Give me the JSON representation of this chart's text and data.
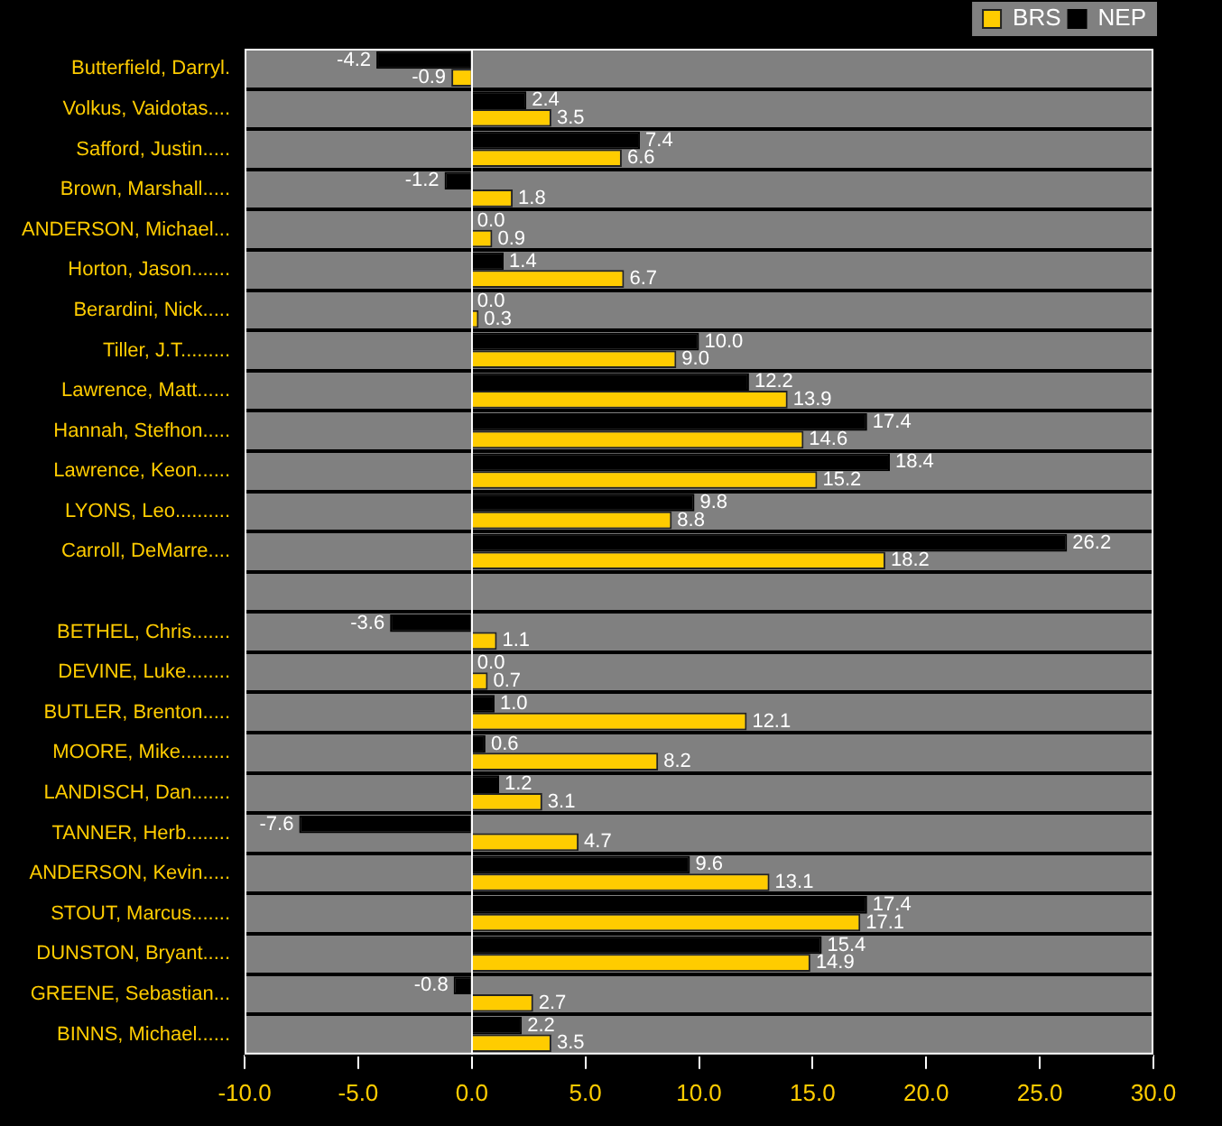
{
  "chart_data": {
    "type": "bar",
    "orientation": "horizontal",
    "categories": [
      "Butterfield, Darryl.",
      "Volkus, Vaidotas....",
      "Safford, Justin.....",
      "Brown, Marshall.....",
      "ANDERSON, Michael...",
      "Horton, Jason.......",
      "Berardini, Nick.....",
      "Tiller, J.T.........",
      "Lawrence, Matt......",
      "Hannah, Stefhon.....",
      "Lawrence, Keon......",
      "LYONS, Leo..........",
      "Carroll, DeMarre....",
      null,
      "BETHEL, Chris.......",
      "DEVINE, Luke........",
      "BUTLER, Brenton.....",
      "MOORE, Mike.........",
      "LANDISCH, Dan.......",
      "TANNER, Herb........",
      "ANDERSON, Kevin.....",
      "STOUT, Marcus.......",
      "DUNSTON, Bryant.....",
      "GREENE, Sebastian...",
      "BINNS, Michael......"
    ],
    "series": [
      {
        "name": "BRS",
        "color": "#ffcc00",
        "values": [
          -0.9,
          3.5,
          6.6,
          1.8,
          0.9,
          6.7,
          0.3,
          9.0,
          13.9,
          14.6,
          15.2,
          8.8,
          18.2,
          null,
          1.1,
          0.7,
          12.1,
          8.2,
          3.1,
          4.7,
          13.1,
          17.1,
          14.9,
          2.7,
          3.5
        ],
        "value_labels": [
          "-0.9",
          "3.5",
          "6.6",
          "1.8",
          "0.9",
          "6.7",
          "0.3",
          "9.0",
          "13.9",
          "14.6",
          "15.2",
          "8.8",
          "18.2",
          null,
          "1.1",
          "0.7",
          "12.1",
          "8.2",
          "3.1",
          "4.7",
          "13.1",
          "17.1",
          "14.9",
          "2.7",
          "3.5"
        ]
      },
      {
        "name": "NEP",
        "color": "#000000",
        "values": [
          -4.2,
          2.4,
          7.4,
          -1.2,
          0.0,
          1.4,
          0.0,
          10.0,
          12.2,
          17.4,
          18.4,
          9.8,
          26.2,
          null,
          -3.6,
          0.0,
          1.0,
          0.6,
          1.2,
          -7.6,
          9.6,
          17.4,
          15.4,
          -0.8,
          2.2
        ],
        "value_labels": [
          "-4.2",
          "2.4",
          "7.4",
          "-1.2",
          "0.0",
          "1.4",
          "0.0",
          "10.0",
          "12.2",
          "17.4",
          "18.4",
          "9.8",
          "26.2",
          null,
          "-3.6",
          "0.0",
          "1.0",
          "0.6",
          "1.2",
          "-7.6",
          "9.6",
          "17.4",
          "15.4",
          "-0.8",
          "2.2"
        ]
      }
    ],
    "xlim": [
      -10,
      30
    ],
    "xticks": [
      {
        "value": -10,
        "label": "-10.0"
      },
      {
        "value": -5,
        "label": "-5.0"
      },
      {
        "value": 0,
        "label": "0.0"
      },
      {
        "value": 5,
        "label": "5.0"
      },
      {
        "value": 10,
        "label": "10.0"
      },
      {
        "value": 15,
        "label": "15.0"
      },
      {
        "value": 20,
        "label": "20.0"
      },
      {
        "value": 25,
        "label": "25.0"
      },
      {
        "value": 30,
        "label": "30.0"
      }
    ],
    "grid": "y",
    "legend": "top right"
  }
}
